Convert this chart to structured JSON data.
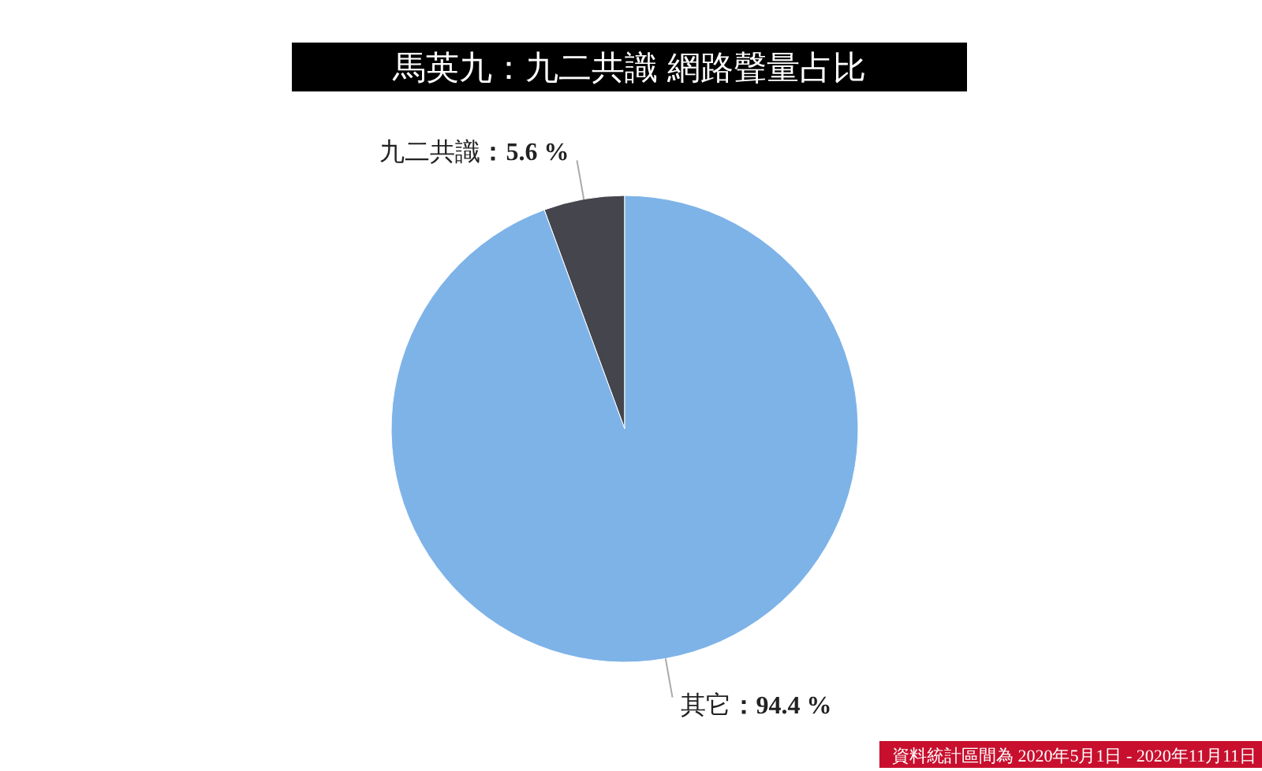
{
  "chart_data": {
    "type": "pie",
    "title": "馬英九：九二共識 網路聲量占比",
    "categories": [
      "九二共識",
      "其它"
    ],
    "values": [
      5.6,
      94.4
    ],
    "colors": [
      "#45454d",
      "#7eb3e8"
    ],
    "value_labels": [
      "：5.6 %",
      "：94.4 %"
    ],
    "legend": false,
    "annotations": [
      "資料統計區間為 2020年5月1日 - 2020年11月11日"
    ]
  }
}
